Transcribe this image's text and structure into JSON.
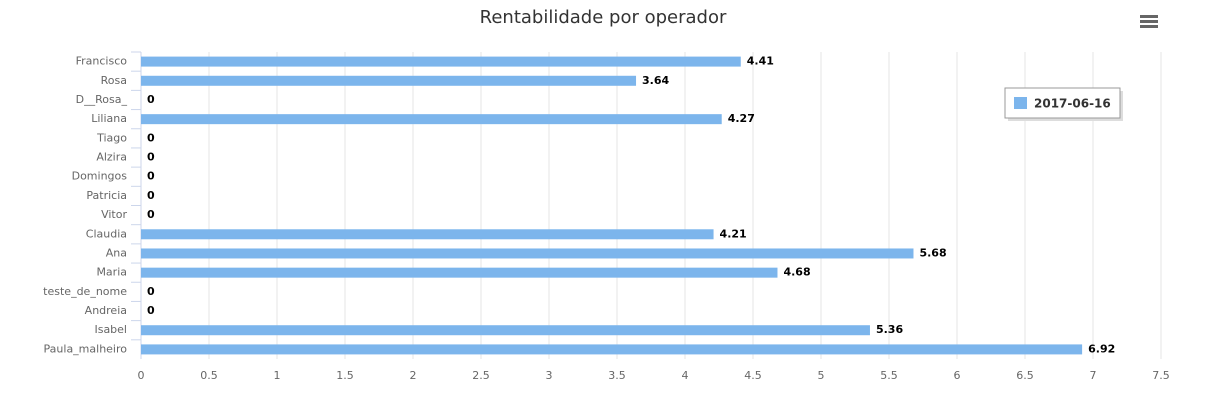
{
  "chart_data": {
    "type": "bar",
    "title": "Rentabilidade por operador",
    "categories": [
      "Francisco",
      "Rosa",
      "D__Rosa_",
      "Liliana",
      "Tiago",
      "Alzira",
      "Domingos",
      "Patricia",
      "Vitor",
      "Claudia",
      "Ana",
      "Maria",
      "teste_de_nome",
      "Andreia",
      "Isabel",
      "Paula_malheiro"
    ],
    "series": [
      {
        "name": "2017-06-16",
        "color": "#7cb5ec",
        "values": [
          4.41,
          3.64,
          0,
          4.27,
          0,
          0,
          0,
          0,
          0,
          4.21,
          5.68,
          4.68,
          0,
          0,
          5.36,
          6.92
        ]
      }
    ],
    "xlim": [
      0,
      7.5
    ],
    "xticks": [
      0,
      0.5,
      1,
      1.5,
      2,
      2.5,
      3,
      3.5,
      4,
      4.5,
      5,
      5.5,
      6,
      6.5,
      7,
      7.5
    ],
    "grid": true,
    "legend": "top-right"
  }
}
